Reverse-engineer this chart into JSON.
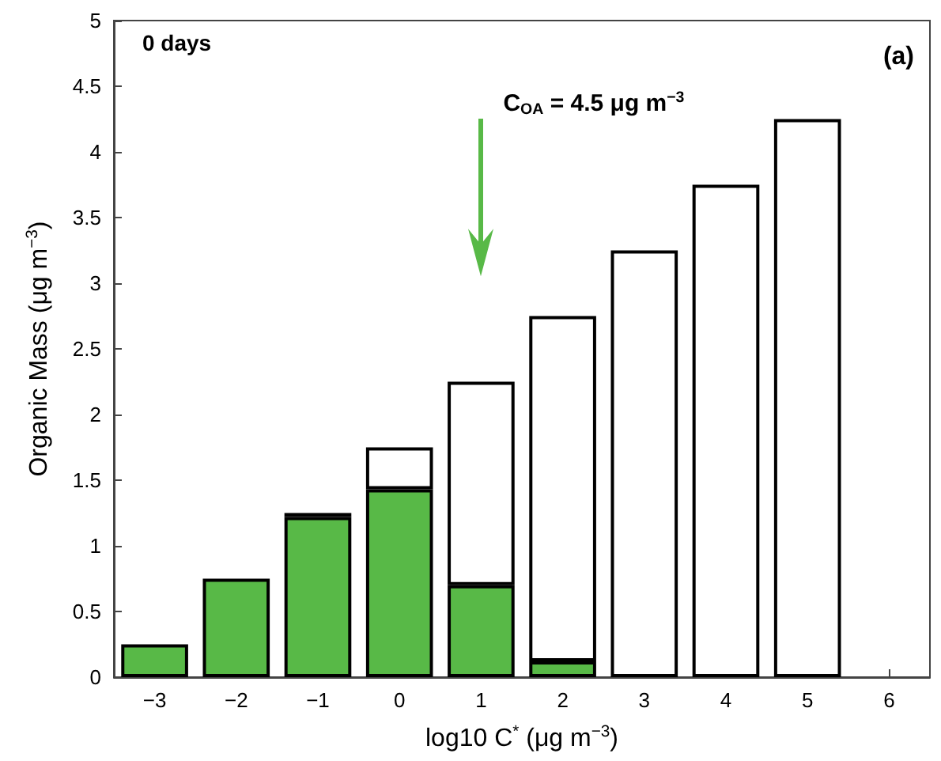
{
  "chart_data": {
    "type": "bar",
    "stacked": true,
    "xlabel": "log10 C$^{*}$ (μg m$^{−3}$)",
    "ylabel": "Organic Mass (μg m$^{−3}$)",
    "categories": [
      "−3",
      "−2",
      "−1",
      "0",
      "1",
      "2",
      "3",
      "4",
      "5",
      "6"
    ],
    "series": [
      {
        "color": "#58b947",
        "values": [
          0.25,
          0.75,
          1.22,
          1.43,
          0.7,
          0.12,
          null,
          null,
          null,
          null
        ]
      },
      {
        "color": "#ffffff",
        "values": [
          null,
          null,
          0.03,
          0.32,
          1.55,
          2.63,
          3.25,
          3.75,
          4.25,
          null
        ]
      }
    ],
    "ylim": [
      0,
      5
    ],
    "yticks": [
      0,
      0.5,
      1,
      1.5,
      2,
      2.5,
      3,
      3.5,
      4,
      4.5,
      5
    ],
    "grid": false,
    "annotations": [
      "0 days",
      "(a)",
      "C$_{OA}$ = 4.5 μg m$^{−3}$"
    ]
  }
}
